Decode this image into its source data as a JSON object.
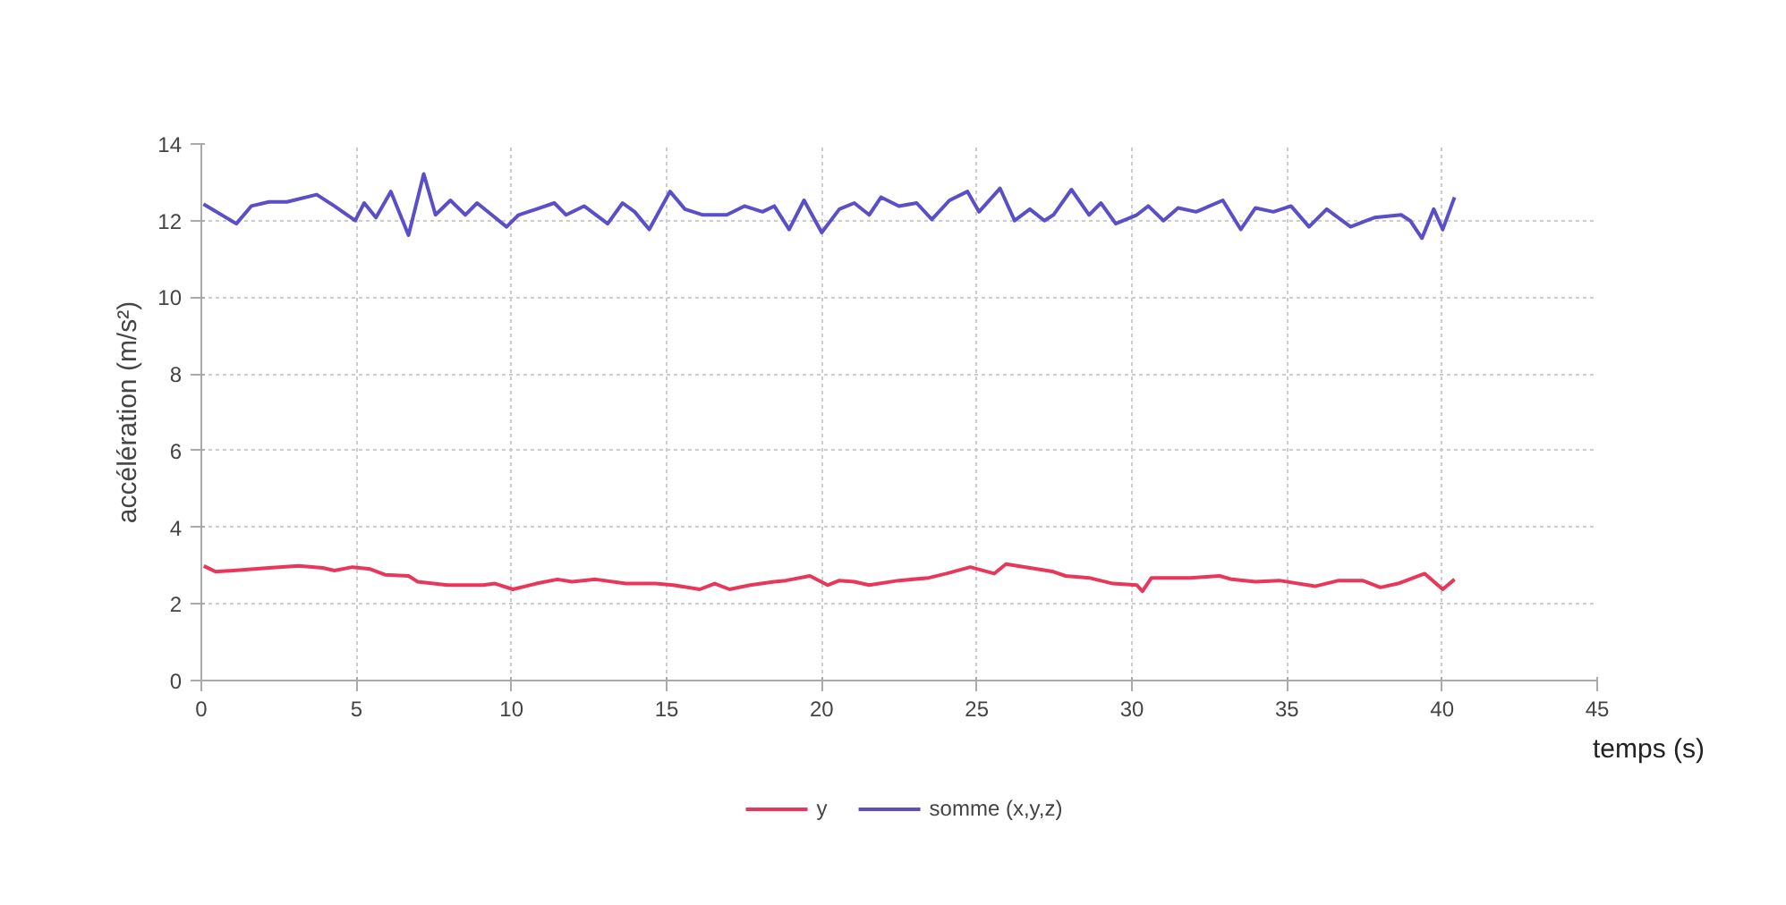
{
  "chart_data": {
    "type": "line",
    "xlabel": "temps (s)",
    "ylabel": "accélération (m/s²)",
    "xlim": [
      0,
      45
    ],
    "xticks": [
      0,
      5,
      10,
      15,
      20,
      25,
      30,
      35,
      40,
      45
    ],
    "ylim": [
      0,
      14
    ],
    "yticks": [
      0,
      2,
      4,
      6,
      8,
      10,
      12,
      14
    ],
    "grid": true,
    "legend": "bottom",
    "marker": "none",
    "line_style": "solid",
    "series": [
      {
        "name": "y",
        "color": "#e8375a",
        "x": [
          0.08,
          0.46,
          1.23,
          2.18,
          3.14,
          3.91,
          4.29,
          4.87,
          5.44,
          5.92,
          6.68,
          6.97,
          7.93,
          9.08,
          9.47,
          10.04,
          10.8,
          11.48,
          11.95,
          12.72,
          13.68,
          14.64,
          15.21,
          16.07,
          16.55,
          17.03,
          17.7,
          18.47,
          18.85,
          19.62,
          20.19,
          20.57,
          21.05,
          21.53,
          22.49,
          23.45,
          24.02,
          24.79,
          25.56,
          25.94,
          26.71,
          27.47,
          27.86,
          28.62,
          29.39,
          30.16,
          30.34,
          30.63,
          31.88,
          32.83,
          33.22,
          33.98,
          34.75,
          35.9,
          36.67,
          37.43,
          38.01,
          38.58,
          39.44,
          40.02,
          40.4
        ],
        "values": [
          2.99,
          2.84,
          2.88,
          2.94,
          2.99,
          2.94,
          2.87,
          2.96,
          2.91,
          2.76,
          2.73,
          2.58,
          2.49,
          2.49,
          2.53,
          2.38,
          2.53,
          2.64,
          2.58,
          2.64,
          2.53,
          2.53,
          2.49,
          2.38,
          2.53,
          2.38,
          2.49,
          2.58,
          2.61,
          2.73,
          2.49,
          2.61,
          2.58,
          2.49,
          2.61,
          2.68,
          2.79,
          2.96,
          2.79,
          3.04,
          2.94,
          2.84,
          2.73,
          2.68,
          2.53,
          2.49,
          2.33,
          2.68,
          2.68,
          2.73,
          2.64,
          2.58,
          2.61,
          2.46,
          2.61,
          2.61,
          2.43,
          2.53,
          2.79,
          2.38,
          2.64
        ]
      },
      {
        "name": "somme (x,y,z)",
        "color": "#5a4fc8",
        "x": [
          0.07,
          1.13,
          1.61,
          2.18,
          2.76,
          3.72,
          4.29,
          4.96,
          5.25,
          5.63,
          6.11,
          6.68,
          7.17,
          7.55,
          8.03,
          8.51,
          8.89,
          9.47,
          9.84,
          10.23,
          10.8,
          11.38,
          11.76,
          12.34,
          13.1,
          13.58,
          13.97,
          14.44,
          15.11,
          15.59,
          16.17,
          16.94,
          17.51,
          18.09,
          18.47,
          18.95,
          19.43,
          20.0,
          20.57,
          21.05,
          21.53,
          21.91,
          22.49,
          23.06,
          23.55,
          24.12,
          24.7,
          25.07,
          25.75,
          26.22,
          26.71,
          27.18,
          27.47,
          28.05,
          28.62,
          29.0,
          29.48,
          30.16,
          30.53,
          31.02,
          31.49,
          32.07,
          32.93,
          33.51,
          33.98,
          34.56,
          35.13,
          35.71,
          36.28,
          37.05,
          37.82,
          38.68,
          38.97,
          39.35,
          39.73,
          40.02,
          40.4
        ],
        "values": [
          12.43,
          11.92,
          12.38,
          12.49,
          12.49,
          12.68,
          12.38,
          12.0,
          12.46,
          12.08,
          12.76,
          11.62,
          13.22,
          12.15,
          12.53,
          12.15,
          12.46,
          12.08,
          11.84,
          12.15,
          12.3,
          12.46,
          12.15,
          12.38,
          11.92,
          12.46,
          12.23,
          11.77,
          12.76,
          12.3,
          12.15,
          12.15,
          12.38,
          12.23,
          12.38,
          11.77,
          12.53,
          11.69,
          12.3,
          12.46,
          12.15,
          12.61,
          12.38,
          12.46,
          12.03,
          12.53,
          12.76,
          12.23,
          12.84,
          12.0,
          12.3,
          12.0,
          12.15,
          12.81,
          12.15,
          12.46,
          11.92,
          12.15,
          12.38,
          12.0,
          12.33,
          12.23,
          12.53,
          11.77,
          12.33,
          12.23,
          12.38,
          11.84,
          12.3,
          11.84,
          12.08,
          12.15,
          12.0,
          11.54,
          12.3,
          11.77,
          12.61
        ]
      }
    ]
  }
}
